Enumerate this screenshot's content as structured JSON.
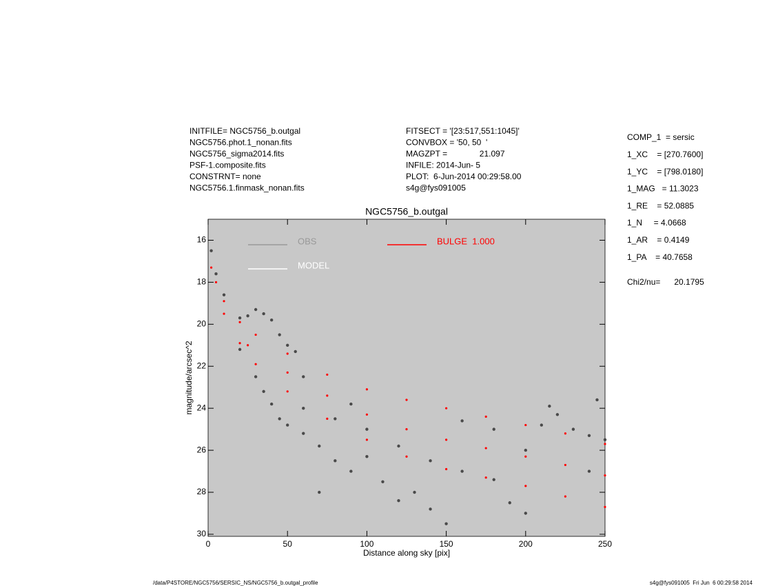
{
  "header": {
    "left": [
      "INITFILE= NGC5756_b.outgal",
      "NGC5756.phot.1_nonan.fits",
      "NGC5756_sigma2014.fits",
      "PSF-1.composite.fits",
      "CONSTRNT= none",
      "NGC5756.1.finmask_nonan.fits"
    ],
    "middle": [
      "FITSECT = '[23:517,551:1045]'",
      "CONVBOX = '50, 50  '",
      "MAGZPT =              21.097",
      "INFILE: 2014-Jun- 5",
      "PLOT:  6-Jun-2014 00:29:58.00",
      "s4g@fys091005"
    ]
  },
  "params": [
    "COMP_1  = sersic",
    "1_XC    = [270.7600]",
    "1_YC    = [798.0180]",
    "1_MAG   = 11.3023",
    "1_RE    = 52.0885",
    "1_N     = 4.0668",
    "1_AR    = 0.4149",
    "1_PA    = 40.7658"
  ],
  "chi2": "Chi2/nu=      20.1795",
  "footer": {
    "left": "/data/P4STORE/NGC5756/SERSIC_NS/NGC5756_b.outgal_profile",
    "right": "s4g@fys091005  Fri Jun  6 00:29:58 2014"
  },
  "chart_data": {
    "type": "scatter",
    "title": "NGC5756_b.outgal",
    "xlabel": "Distance along sky [pix]",
    "ylabel": "magnitude/arcsec^2",
    "xlim": [
      0,
      250
    ],
    "xticks": [
      0,
      50,
      100,
      150,
      200,
      250
    ],
    "ylim": [
      15,
      30.1
    ],
    "yticks": [
      16,
      18,
      20,
      22,
      24,
      26,
      28,
      30
    ],
    "y_inverted": true,
    "background": "#c8c8c8",
    "series": [
      {
        "name": "OBS",
        "color": "#999999",
        "marker_color": "#4a4a4a",
        "x": [
          2,
          5,
          10,
          20,
          25,
          30,
          35,
          40,
          45,
          50,
          55,
          20,
          30,
          35,
          40,
          45,
          50,
          60,
          70,
          80,
          90,
          100,
          110,
          120,
          130,
          60,
          80,
          100,
          120,
          140,
          160,
          180,
          200,
          210,
          220,
          230,
          240,
          250,
          215,
          245,
          160,
          180,
          140,
          190,
          70,
          60,
          90,
          240,
          150,
          200
        ],
        "values": [
          16.5,
          17.6,
          18.6,
          19.7,
          19.6,
          19.3,
          19.5,
          19.8,
          20.5,
          21.0,
          21.3,
          21.2,
          22.5,
          23.2,
          23.8,
          24.5,
          24.8,
          25.2,
          25.8,
          26.5,
          27.0,
          26.3,
          27.5,
          28.4,
          28.0,
          24.0,
          24.5,
          25.0,
          25.8,
          26.5,
          27.0,
          27.4,
          26.0,
          24.8,
          24.3,
          25.0,
          25.3,
          25.5,
          23.9,
          23.6,
          24.6,
          25.0,
          28.8,
          28.5,
          28.0,
          22.5,
          23.8,
          27.0,
          29.5,
          29.0
        ]
      },
      {
        "name": "MODEL",
        "color": "#ffffff",
        "x": [],
        "values": []
      },
      {
        "name": "BULGE  1.000",
        "color": "#ff0000",
        "marker_color": "#ff0000",
        "x": [
          2,
          5,
          10,
          20,
          30,
          50,
          75,
          100,
          125,
          150,
          175,
          200,
          225,
          250,
          10,
          20,
          30,
          50,
          75,
          100,
          125,
          150,
          175,
          200,
          225,
          250,
          25,
          50,
          75,
          100,
          125,
          150,
          175,
          200,
          225,
          250
        ],
        "values": [
          17.3,
          18.0,
          18.9,
          19.9,
          20.5,
          21.4,
          22.4,
          23.1,
          23.6,
          24.0,
          24.4,
          24.8,
          25.2,
          25.7,
          19.5,
          20.9,
          21.9,
          23.2,
          24.5,
          25.5,
          26.3,
          26.9,
          27.3,
          27.7,
          28.2,
          28.7,
          21.0,
          22.3,
          23.4,
          24.3,
          25.0,
          25.5,
          25.9,
          26.3,
          26.7,
          27.2
        ]
      }
    ]
  }
}
